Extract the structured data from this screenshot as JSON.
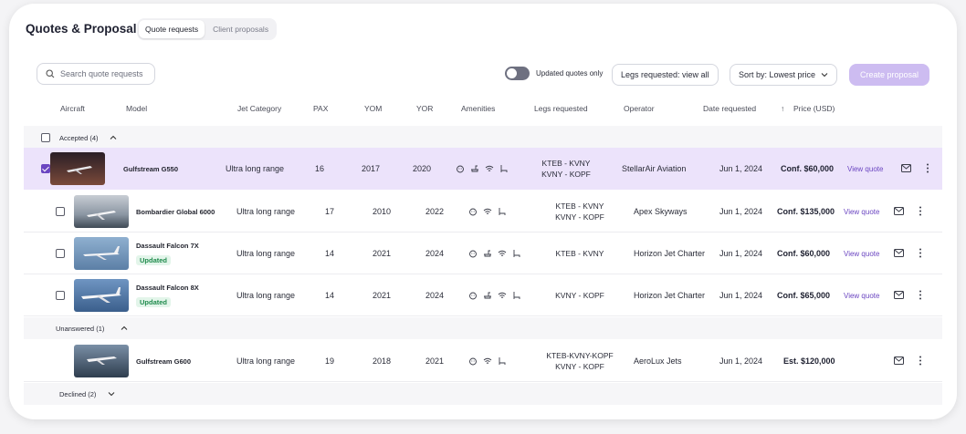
{
  "header": {
    "title": "Quotes & Proposals",
    "tabs": [
      {
        "label": "Quote requests",
        "active": true
      },
      {
        "label": "Client proposals",
        "active": false
      }
    ]
  },
  "toolbar": {
    "search_placeholder": "Search quote requests",
    "toggle_label": "Updated quotes only",
    "legs_filter": "Legs requested: view all",
    "sort_label": "Sort by: Lowest price",
    "create_button": "Create proposal"
  },
  "columns": [
    "Aircraft",
    "Model",
    "Jet Category",
    "PAX",
    "YOM",
    "YOR",
    "Amenities",
    "Legs requested",
    "Operator",
    "Date requested",
    "Price (USD)"
  ],
  "groups": {
    "accepted": "Accepted (4)",
    "unanswered": "Unanswered (1)",
    "declined": "Declined (2)"
  },
  "rows": [
    {
      "model": "Gulfstream G550",
      "category": "Ultra long range",
      "pax": "16",
      "yom": "2017",
      "yor": "2020",
      "legs1": "KTEB - KVNY",
      "legs2": "KVNY - KOPF",
      "operator": "StellarAir Aviation",
      "date": "Jun 1, 2024",
      "price": "Conf. $60,000",
      "link": "View quote",
      "badge": ""
    },
    {
      "model": "Bombardier Global 6000",
      "category": "Ultra long range",
      "pax": "17",
      "yom": "2010",
      "yor": "2022",
      "legs1": "KTEB - KVNY",
      "legs2": "KVNY - KOPF",
      "operator": "Apex Skyways",
      "date": "Jun 1, 2024",
      "price": "Conf. $135,000",
      "link": "View quote",
      "badge": ""
    },
    {
      "model": "Dassault Falcon 7X",
      "category": "Ultra long range",
      "pax": "14",
      "yom": "2021",
      "yor": "2024",
      "legs1": "KTEB - KVNY",
      "legs2": "",
      "operator": "Horizon Jet Charter",
      "date": "Jun 1, 2024",
      "price": "Conf. $60,000",
      "link": "View quote",
      "badge": "Updated"
    },
    {
      "model": "Dassault Falcon 8X",
      "category": "Ultra long range",
      "pax": "14",
      "yom": "2021",
      "yor": "2024",
      "legs1": "KVNY - KOPF",
      "legs2": "",
      "operator": "Horizon Jet Charter",
      "date": "Jun 1, 2024",
      "price": "Conf. $65,000",
      "link": "View quote",
      "badge": "Updated"
    },
    {
      "model": "Gulfstream G600",
      "category": "Ultra long range",
      "pax": "19",
      "yom": "2018",
      "yor": "2021",
      "legs1": "KTEB-KVNY-KOPF",
      "legs2": "KVNY - KOPF",
      "operator": "AeroLux Jets",
      "date": "Jun 1, 2024",
      "price": "Est. $120,000",
      "link": "",
      "badge": ""
    }
  ],
  "colors": {
    "accent": "#6b46c1",
    "selected_row": "#ece3fb",
    "primary_disabled": "#cdbcf1",
    "badge_green": "#1f8a4c"
  }
}
